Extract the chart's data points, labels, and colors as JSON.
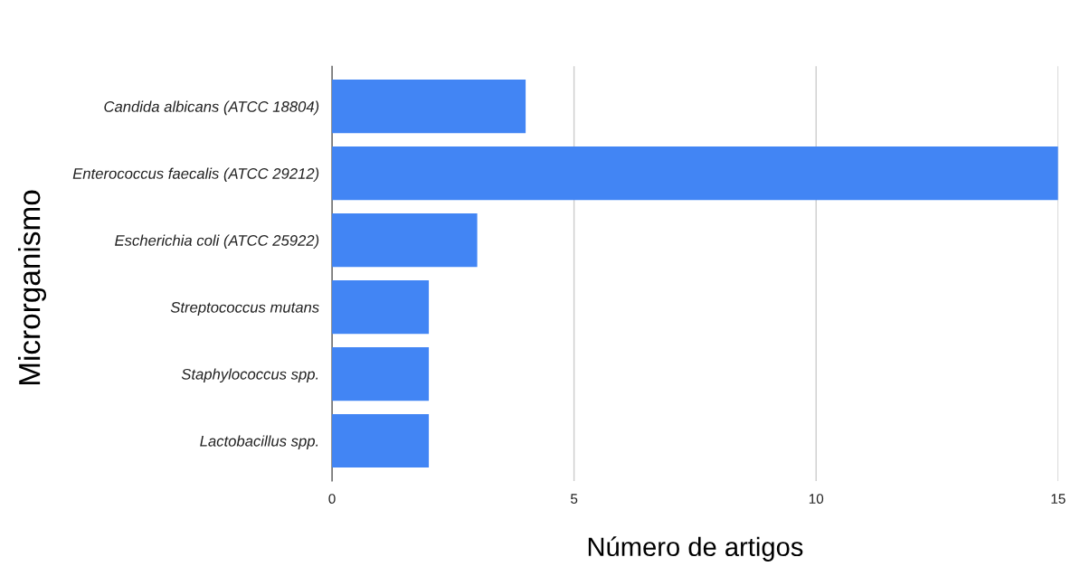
{
  "chart_data": {
    "type": "bar",
    "orientation": "horizontal",
    "xlabel": "Número de artigos",
    "ylabel": "Microrganismo",
    "categories": [
      "Candida albicans (ATCC 18804)",
      "Enterococcus faecalis (ATCC 29212)",
      "Escherichia coli (ATCC 25922)",
      "Streptococcus mutans",
      "Staphylococcus spp.",
      "Lactobacillus spp."
    ],
    "values": [
      4,
      15,
      3,
      2,
      2,
      2
    ],
    "color": "#4285f4",
    "xlim": [
      0,
      15
    ],
    "xticks": [
      0,
      5,
      10,
      15
    ],
    "grid": "x"
  }
}
